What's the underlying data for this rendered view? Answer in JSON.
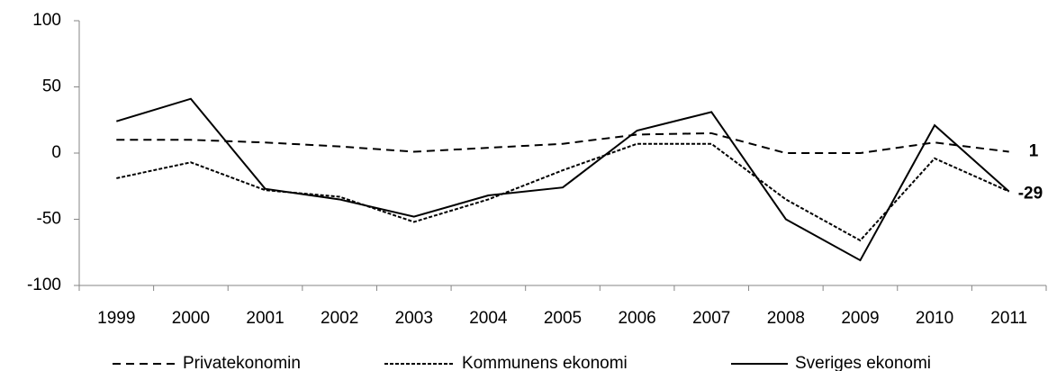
{
  "chart_data": {
    "type": "line",
    "categories": [
      "1999",
      "2000",
      "2001",
      "2002",
      "2003",
      "2004",
      "2005",
      "2006",
      "2007",
      "2008",
      "2009",
      "2010",
      "2011"
    ],
    "series": [
      {
        "name": "Privatekonomin",
        "color": "#000000",
        "dash": "9,6",
        "end_label": true,
        "values": [
          10,
          10,
          8,
          5,
          1,
          4,
          7,
          14,
          15,
          0,
          0,
          8,
          1
        ]
      },
      {
        "name": "Kommunens ekonomi",
        "color": "#000000",
        "dash": "4,2",
        "end_label": true,
        "values": [
          -19,
          -7,
          -28,
          -33,
          -52,
          -35,
          -13,
          7,
          7,
          -35,
          -66,
          -4,
          -29
        ]
      },
      {
        "name": "Sveriges ekonomi",
        "color": "#000000",
        "dash": "none",
        "end_label": false,
        "values": [
          24,
          41,
          -27,
          -35,
          -48,
          -32,
          -26,
          17,
          31,
          -50,
          -81,
          21,
          -29
        ]
      }
    ],
    "ylim": [
      -100,
      100
    ],
    "yticks": [
      -100,
      -50,
      0,
      50,
      100
    ],
    "grid": false,
    "legend": "bottom"
  }
}
